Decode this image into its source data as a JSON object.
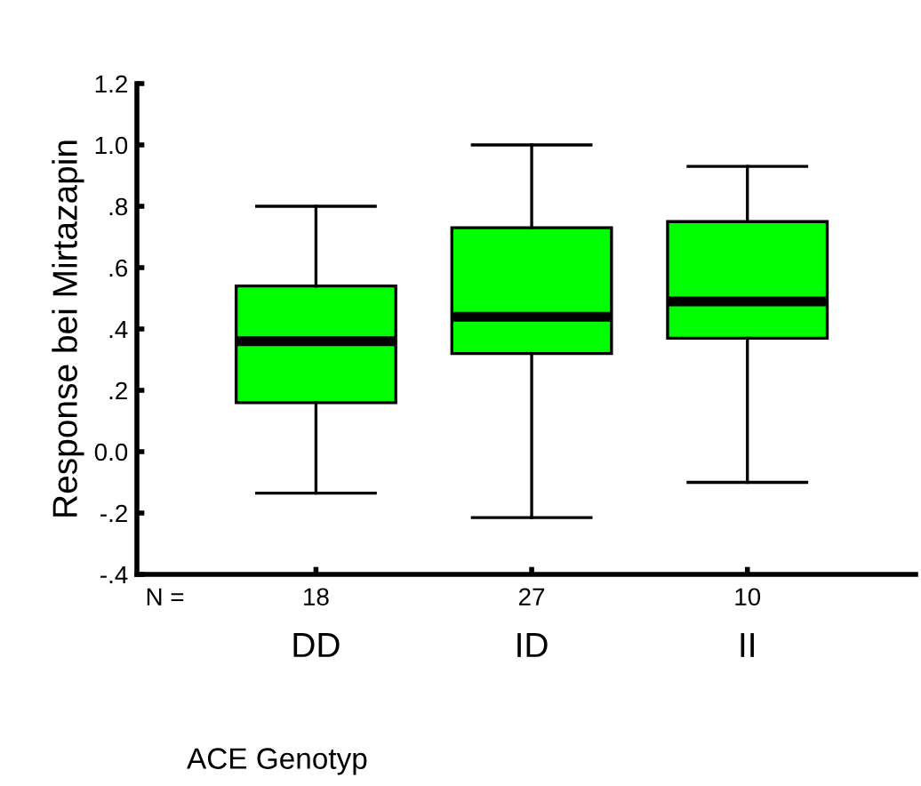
{
  "chart_data": {
    "type": "box",
    "xlabel": "ACE Genotyp",
    "ylabel": "Response bei Mirtazapin",
    "categories": [
      "DD",
      "ID",
      "II"
    ],
    "boxes": [
      {
        "low": -0.135,
        "q1": 0.16,
        "median": 0.36,
        "q3": 0.54,
        "high": 0.8
      },
      {
        "low": -0.215,
        "q1": 0.32,
        "median": 0.44,
        "q3": 0.73,
        "high": 1.0
      },
      {
        "low": -0.1,
        "q1": 0.37,
        "median": 0.49,
        "q3": 0.75,
        "high": 0.93
      }
    ],
    "color": "#00ff00",
    "ylim": [
      -0.4,
      1.2
    ],
    "yticks": [
      {
        "value": -0.4,
        "label": "-.4"
      },
      {
        "value": -0.2,
        "label": "-.2"
      },
      {
        "value": 0.0,
        "label": "0.0"
      },
      {
        "value": 0.2,
        "label": ".2"
      },
      {
        "value": 0.4,
        "label": ".4"
      },
      {
        "value": 0.6,
        "label": ".6"
      },
      {
        "value": 0.8,
        "label": ".8"
      },
      {
        "value": 1.0,
        "label": "1.0"
      },
      {
        "value": 1.2,
        "label": "1.2"
      }
    ],
    "annotations": [
      "N =",
      "18",
      "27",
      "10"
    ],
    "grid": false,
    "legend": false
  }
}
